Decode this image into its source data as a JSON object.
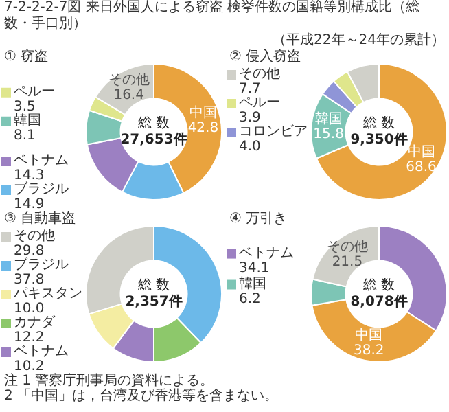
{
  "chart_data": [
    {
      "type": "donut",
      "title": "① 窃盗",
      "categories": [
        "中国",
        "ブラジル",
        "ベトナム",
        "韓国",
        "ペルー",
        "その他"
      ],
      "values": [
        42.8,
        14.9,
        14.3,
        8.1,
        3.5,
        16.4
      ],
      "value_labels": [
        "42.8",
        "14.9",
        "14.3",
        "8.1",
        "3.5",
        "16.4"
      ],
      "colors": [
        "#e9a33e",
        "#6cb9e9",
        "#9c80c2",
        "#7dc5b5",
        "#dfe68c",
        "#d0d0c9"
      ],
      "legend": "left",
      "annotations": [
        "7-2-2-2-7図 来日外国人による窃盗 検挙件数の国籍等別構成比（総数・手口別）",
        "（平成22年～24年の累計）",
        "総 数",
        "27,653件"
      ]
    },
    {
      "type": "donut",
      "title": "② 侵入窃盗",
      "categories": [
        "中国",
        "韓国",
        "コロンビア",
        "ペルー",
        "その他"
      ],
      "values": [
        68.6,
        15.8,
        4.0,
        3.9,
        7.7
      ],
      "value_labels": [
        "68.6",
        "15.8",
        "4.0",
        "3.9",
        "7.7"
      ],
      "colors": [
        "#e9a33e",
        "#7dc5b5",
        "#8f95d7",
        "#dfe68c",
        "#d0d0c9"
      ],
      "legend": "left",
      "annotations": [
        "総 数",
        "9,350件"
      ]
    },
    {
      "type": "donut",
      "title": "③ 自動車盗",
      "categories": [
        "ブラジル",
        "カナダ",
        "ベトナム",
        "パキスタン",
        "その他"
      ],
      "values": [
        37.8,
        12.2,
        10.2,
        10.0,
        29.8
      ],
      "value_labels": [
        "37.8",
        "12.2",
        "10.2",
        "10.0",
        "29.8"
      ],
      "colors": [
        "#6cb9e9",
        "#8dc86b",
        "#9c80c2",
        "#f4eda2",
        "#d0d0c9"
      ],
      "legend": "left",
      "annotations": [
        "総 数",
        "2,357件"
      ]
    },
    {
      "type": "donut",
      "title": "④ 万引き",
      "categories": [
        "ベトナム",
        "中国",
        "韓国",
        "その他"
      ],
      "values": [
        34.1,
        38.2,
        6.2,
        21.5
      ],
      "value_labels": [
        "34.1",
        "38.2",
        "6.2",
        "21.5"
      ],
      "colors": [
        "#9c80c2",
        "#e9a33e",
        "#7dc5b5",
        "#d0d0c9"
      ],
      "legend": "left",
      "annotations": [
        "総 数",
        "8,078件",
        "注 1 警察庁刑事局の資料による。",
        "2 「中国」は，台湾及び香港等を含まない。"
      ]
    }
  ]
}
